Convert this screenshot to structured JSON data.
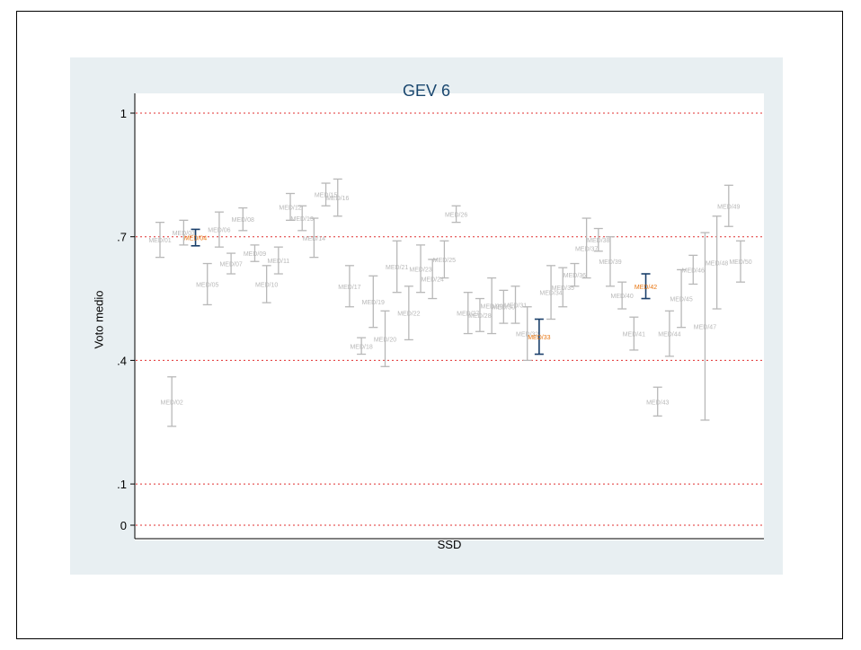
{
  "chart_data": {
    "type": "errorbar",
    "title": "GEV 6",
    "xlabel": "SSD",
    "ylabel": "Voto medio",
    "ylim": [
      0,
      1.0
    ],
    "yticks": [
      {
        "value": 0,
        "label": "0"
      },
      {
        "value": 0.1,
        "label": ".1"
      },
      {
        "value": 0.4,
        "label": ".4"
      },
      {
        "value": 0.7,
        "label": ".7"
      },
      {
        "value": 1.0,
        "label": "1"
      }
    ],
    "reference_lines": [
      0,
      0.1,
      0.4,
      0.7,
      1.0
    ],
    "reference_line_color": "#e03030",
    "errorbar_color": "#b8b8b8",
    "highlight_errorbar_color": "#1a3f6b",
    "highlight_label_color": "#e8750f",
    "background_color": "#e8eff2",
    "series": [
      {
        "label": "MED/01",
        "low": 0.65,
        "high": 0.735,
        "highlight": false
      },
      {
        "label": "MED/02",
        "low": 0.24,
        "high": 0.36,
        "highlight": false
      },
      {
        "label": "MED/03",
        "low": 0.68,
        "high": 0.74,
        "highlight": false
      },
      {
        "label": "MED/04",
        "low": 0.678,
        "high": 0.718,
        "highlight": true
      },
      {
        "label": "MED/05",
        "low": 0.535,
        "high": 0.635,
        "highlight": false
      },
      {
        "label": "MED/06",
        "low": 0.675,
        "high": 0.76,
        "highlight": false
      },
      {
        "label": "MED/07",
        "low": 0.61,
        "high": 0.66,
        "highlight": false
      },
      {
        "label": "MED/08",
        "low": 0.715,
        "high": 0.77,
        "highlight": false
      },
      {
        "label": "MED/09",
        "low": 0.64,
        "high": 0.68,
        "highlight": false
      },
      {
        "label": "MED/10",
        "low": 0.54,
        "high": 0.63,
        "highlight": false
      },
      {
        "label": "MED/11",
        "low": 0.61,
        "high": 0.675,
        "highlight": false
      },
      {
        "label": "MED/12",
        "low": 0.74,
        "high": 0.805,
        "highlight": false
      },
      {
        "label": "MED/13",
        "low": 0.715,
        "high": 0.775,
        "highlight": false
      },
      {
        "label": "MED/14",
        "low": 0.65,
        "high": 0.745,
        "highlight": false
      },
      {
        "label": "MED/15",
        "low": 0.775,
        "high": 0.83,
        "highlight": false
      },
      {
        "label": "MED/16",
        "low": 0.75,
        "high": 0.84,
        "highlight": false
      },
      {
        "label": "MED/17",
        "low": 0.53,
        "high": 0.63,
        "highlight": false
      },
      {
        "label": "MED/18",
        "low": 0.415,
        "high": 0.455,
        "highlight": false
      },
      {
        "label": "MED/19",
        "low": 0.48,
        "high": 0.605,
        "highlight": false
      },
      {
        "label": "MED/20",
        "low": 0.385,
        "high": 0.52,
        "highlight": false
      },
      {
        "label": "MED/21",
        "low": 0.565,
        "high": 0.69,
        "highlight": false
      },
      {
        "label": "MED/22",
        "low": 0.45,
        "high": 0.58,
        "highlight": false
      },
      {
        "label": "MED/23",
        "low": 0.565,
        "high": 0.68,
        "highlight": false
      },
      {
        "label": "MED/24",
        "low": 0.55,
        "high": 0.645,
        "highlight": false
      },
      {
        "label": "MED/25",
        "low": 0.6,
        "high": 0.69,
        "highlight": false
      },
      {
        "label": "MED/26",
        "low": 0.735,
        "high": 0.775,
        "highlight": false
      },
      {
        "label": "MED/27",
        "low": 0.465,
        "high": 0.565,
        "highlight": false
      },
      {
        "label": "MED/28",
        "low": 0.47,
        "high": 0.55,
        "highlight": false
      },
      {
        "label": "MED/29",
        "low": 0.465,
        "high": 0.6,
        "highlight": false
      },
      {
        "label": "MED/30",
        "low": 0.49,
        "high": 0.57,
        "highlight": false
      },
      {
        "label": "MED/31",
        "low": 0.49,
        "high": 0.58,
        "highlight": false
      },
      {
        "label": "MED/32",
        "low": 0.4,
        "high": 0.53,
        "highlight": false
      },
      {
        "label": "MED/33",
        "low": 0.415,
        "high": 0.5,
        "highlight": true
      },
      {
        "label": "MED/34",
        "low": 0.5,
        "high": 0.63,
        "highlight": false
      },
      {
        "label": "MED/35",
        "low": 0.53,
        "high": 0.625,
        "highlight": false
      },
      {
        "label": "MED/36",
        "low": 0.58,
        "high": 0.635,
        "highlight": false
      },
      {
        "label": "MED/37",
        "low": 0.6,
        "high": 0.745,
        "highlight": false
      },
      {
        "label": "MED/38",
        "low": 0.665,
        "high": 0.72,
        "highlight": false
      },
      {
        "label": "MED/39",
        "low": 0.58,
        "high": 0.7,
        "highlight": false
      },
      {
        "label": "MED/40",
        "low": 0.525,
        "high": 0.59,
        "highlight": false
      },
      {
        "label": "MED/41",
        "low": 0.425,
        "high": 0.505,
        "highlight": false
      },
      {
        "label": "MED/42",
        "low": 0.55,
        "high": 0.61,
        "highlight": true
      },
      {
        "label": "MED/43",
        "low": 0.265,
        "high": 0.335,
        "highlight": false
      },
      {
        "label": "MED/44",
        "low": 0.41,
        "high": 0.52,
        "highlight": false
      },
      {
        "label": "MED/45",
        "low": 0.48,
        "high": 0.62,
        "highlight": false
      },
      {
        "label": "MED/46",
        "low": 0.585,
        "high": 0.655,
        "highlight": false
      },
      {
        "label": "MED/47",
        "low": 0.255,
        "high": 0.71,
        "highlight": false
      },
      {
        "label": "MED/48",
        "low": 0.525,
        "high": 0.75,
        "highlight": false
      },
      {
        "label": "MED/49",
        "low": 0.725,
        "high": 0.825,
        "highlight": false
      },
      {
        "label": "MED/50",
        "low": 0.59,
        "high": 0.69,
        "highlight": false
      }
    ]
  }
}
